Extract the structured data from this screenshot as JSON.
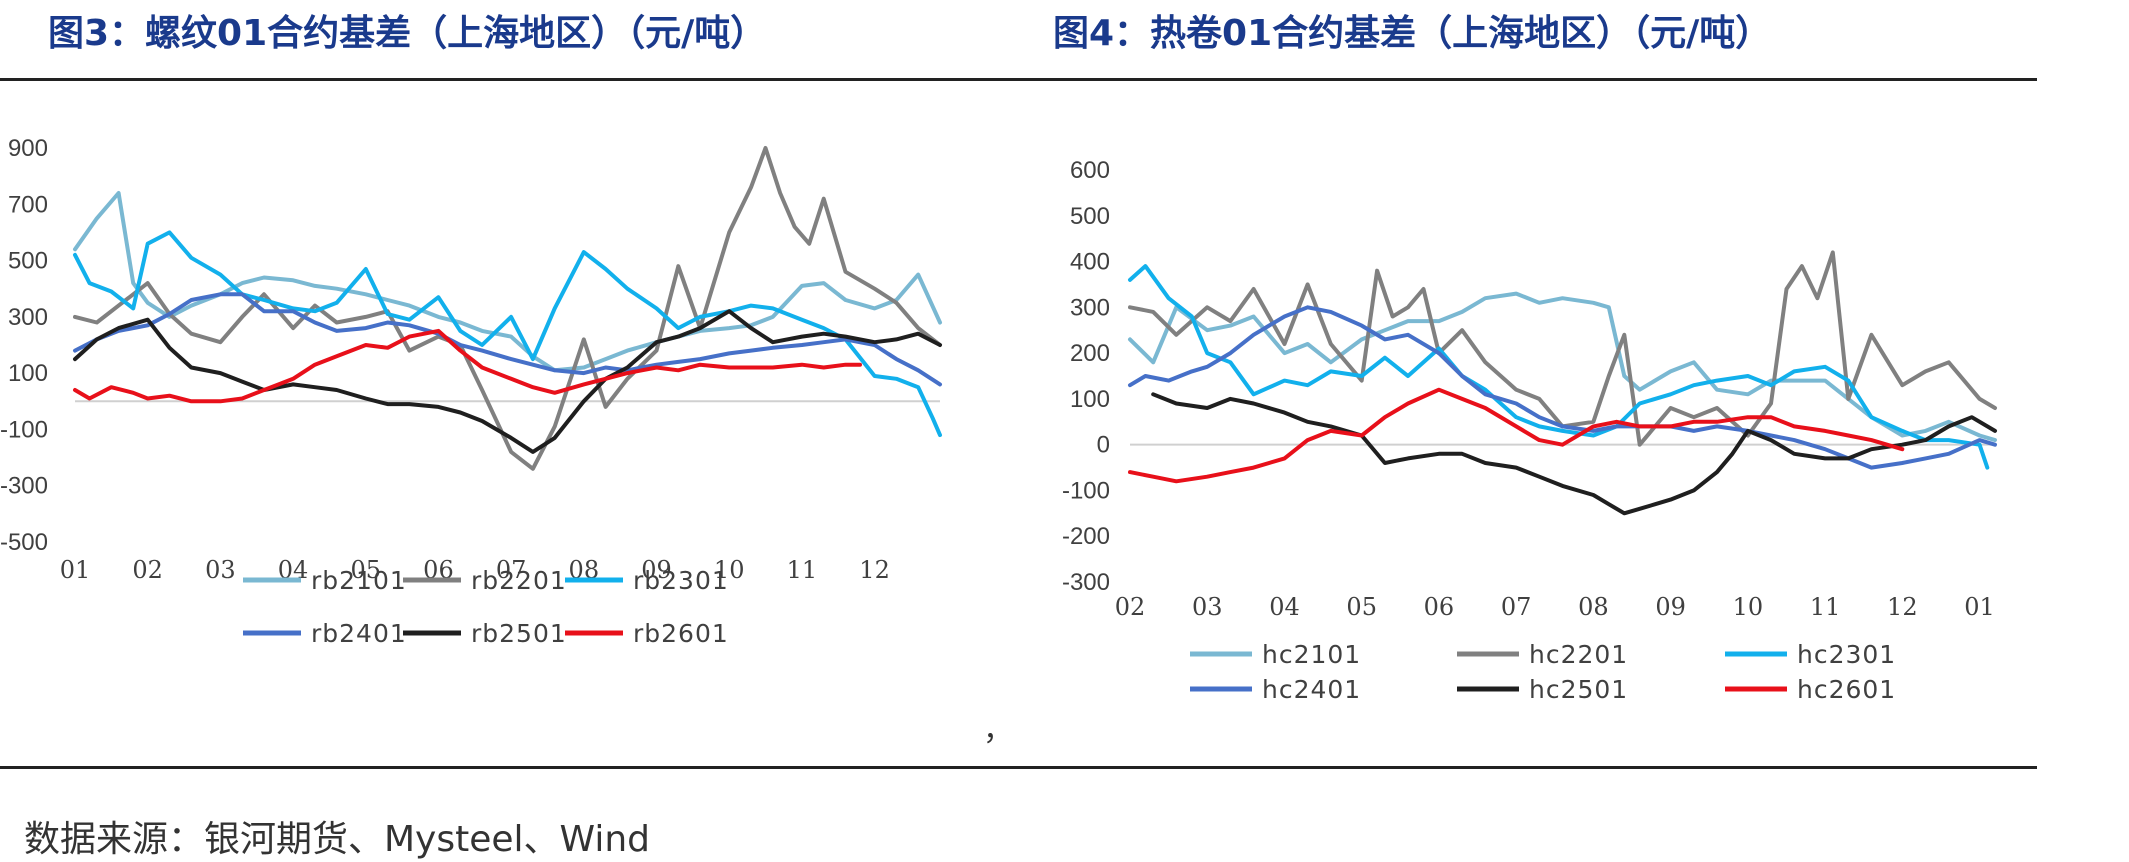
{
  "charts_header": {
    "left_title": "图3：螺纹01合约基差（上海地区）（元/吨）",
    "right_title": "图4：热卷01合约基差（上海地区）（元/吨）"
  },
  "stray_mark": "，",
  "source": "数据来源：银河期货、Mysteel、Wind",
  "chart_data": [
    {
      "type": "line",
      "title": "图3：螺纹01合约基差（上海地区）（元/吨）",
      "x_ticks": [
        "01",
        "02",
        "03",
        "04",
        "05",
        "06",
        "07",
        "08",
        "09",
        "10",
        "11",
        "12"
      ],
      "y_ticks": [
        "900",
        "700",
        "500",
        "300",
        "100",
        "-100",
        "-300",
        "-500"
      ],
      "ylim": [
        -500,
        900
      ],
      "xlim": [
        1,
        12.9
      ],
      "grid": false,
      "zero_line": true,
      "legend_position": "bottom",
      "series": [
        {
          "name": "rb2101",
          "color": "#7ab8d2",
          "x": [
            1,
            1.3,
            1.6,
            1.8,
            2,
            2.3,
            2.6,
            3,
            3.3,
            3.6,
            4,
            4.3,
            4.6,
            5,
            5.3,
            5.6,
            6,
            6.3,
            6.6,
            7,
            7.3,
            7.6,
            8,
            8.3,
            8.6,
            9,
            9.3,
            9.6,
            10,
            10.3,
            10.6,
            11,
            11.3,
            11.6,
            12,
            12.3,
            12.6,
            12.9
          ],
          "y": [
            540,
            650,
            740,
            420,
            350,
            300,
            340,
            380,
            420,
            440,
            430,
            410,
            400,
            380,
            360,
            340,
            300,
            280,
            250,
            230,
            160,
            110,
            120,
            150,
            180,
            210,
            230,
            250,
            260,
            270,
            300,
            410,
            420,
            360,
            330,
            360,
            450,
            280
          ]
        },
        {
          "name": "rb2201",
          "color": "#808080",
          "x": [
            1,
            1.3,
            1.6,
            2,
            2.3,
            2.6,
            3,
            3.3,
            3.6,
            4,
            4.3,
            4.6,
            5,
            5.3,
            5.6,
            6,
            6.3,
            6.6,
            7,
            7.3,
            7.6,
            8,
            8.3,
            8.6,
            9,
            9.3,
            9.6,
            10,
            10.3,
            10.5,
            10.7,
            10.9,
            11.1,
            11.3,
            11.6,
            12,
            12.3,
            12.6,
            12.9
          ],
          "y": [
            300,
            280,
            340,
            420,
            310,
            240,
            210,
            300,
            380,
            260,
            340,
            280,
            300,
            320,
            180,
            230,
            200,
            40,
            -180,
            -240,
            -90,
            220,
            -20,
            80,
            180,
            480,
            260,
            600,
            760,
            900,
            740,
            620,
            560,
            720,
            460,
            400,
            350,
            260,
            200
          ]
        },
        {
          "name": "rb2301",
          "color": "#12b0ec",
          "x": [
            1,
            1.2,
            1.5,
            1.8,
            2,
            2.3,
            2.6,
            3,
            3.3,
            3.6,
            4,
            4.3,
            4.6,
            5,
            5.3,
            5.6,
            6,
            6.3,
            6.6,
            7,
            7.3,
            7.6,
            8,
            8.3,
            8.6,
            9,
            9.3,
            9.6,
            10,
            10.3,
            10.6,
            11,
            11.3,
            11.6,
            12,
            12.3,
            12.6,
            12.8,
            12.9
          ],
          "y": [
            520,
            420,
            390,
            330,
            560,
            600,
            510,
            450,
            380,
            360,
            330,
            320,
            350,
            470,
            310,
            290,
            370,
            250,
            200,
            300,
            150,
            330,
            530,
            470,
            400,
            330,
            260,
            300,
            320,
            340,
            330,
            290,
            260,
            220,
            90,
            80,
            50,
            -60,
            -120
          ]
        },
        {
          "name": "rb2401",
          "color": "#4670c8",
          "x": [
            1,
            1.3,
            1.6,
            2,
            2.3,
            2.6,
            3,
            3.3,
            3.6,
            4,
            4.3,
            4.6,
            5,
            5.3,
            5.6,
            6,
            6.3,
            6.6,
            7,
            7.3,
            7.6,
            8,
            8.3,
            8.6,
            9,
            9.3,
            9.6,
            10,
            10.3,
            10.6,
            11,
            11.3,
            11.6,
            12,
            12.3,
            12.6,
            12.9
          ],
          "y": [
            180,
            220,
            250,
            270,
            310,
            360,
            380,
            380,
            320,
            320,
            280,
            250,
            260,
            280,
            270,
            240,
            200,
            180,
            150,
            130,
            110,
            100,
            120,
            110,
            130,
            140,
            150,
            170,
            180,
            190,
            200,
            210,
            220,
            200,
            150,
            110,
            60
          ]
        },
        {
          "name": "rb2501",
          "color": "#1f1f1f",
          "x": [
            1,
            1.3,
            1.6,
            2,
            2.3,
            2.6,
            3,
            3.3,
            3.6,
            4,
            4.3,
            4.6,
            5,
            5.3,
            5.6,
            6,
            6.3,
            6.6,
            7,
            7.3,
            7.6,
            8,
            8.3,
            8.6,
            9,
            9.3,
            9.6,
            10,
            10.3,
            10.6,
            11,
            11.3,
            11.6,
            12,
            12.3,
            12.6,
            12.9
          ],
          "y": [
            150,
            220,
            260,
            290,
            190,
            120,
            100,
            70,
            40,
            60,
            50,
            40,
            10,
            -10,
            -10,
            -20,
            -40,
            -70,
            -130,
            -180,
            -130,
            0,
            80,
            120,
            210,
            230,
            260,
            320,
            260,
            210,
            230,
            240,
            230,
            210,
            220,
            240,
            200
          ]
        },
        {
          "name": "rb2601",
          "color": "#e8101a",
          "x": [
            1,
            1.2,
            1.5,
            1.8,
            2,
            2.3,
            2.6,
            3,
            3.3,
            3.6,
            4,
            4.3,
            4.6,
            5,
            5.3,
            5.6,
            6,
            6.3,
            6.6,
            7,
            7.3,
            7.6,
            8,
            8.3,
            8.6,
            9,
            9.3,
            9.6,
            10,
            10.3,
            10.6,
            11,
            11.3,
            11.6,
            11.8
          ],
          "y": [
            40,
            10,
            50,
            30,
            10,
            20,
            0,
            0,
            10,
            40,
            80,
            130,
            160,
            200,
            190,
            230,
            250,
            180,
            120,
            80,
            50,
            30,
            60,
            80,
            100,
            120,
            110,
            130,
            120,
            120,
            120,
            130,
            120,
            130,
            130
          ]
        }
      ]
    },
    {
      "type": "line",
      "title": "图4：热卷01合约基差（上海地区）（元/吨）",
      "x_ticks": [
        "02",
        "03",
        "04",
        "05",
        "06",
        "07",
        "08",
        "09",
        "10",
        "11",
        "12",
        "01"
      ],
      "y_ticks": [
        "600",
        "500",
        "400",
        "300",
        "200",
        "100",
        "0",
        "-100",
        "-200",
        "-300"
      ],
      "ylim": [
        -300,
        600
      ],
      "xlim": [
        2,
        13.2
      ],
      "grid": false,
      "zero_line": true,
      "legend_position": "bottom",
      "series": [
        {
          "name": "hc2101",
          "color": "#7ab8d2",
          "x": [
            2,
            2.3,
            2.6,
            3,
            3.3,
            3.6,
            4,
            4.3,
            4.6,
            5,
            5.3,
            5.6,
            6,
            6.3,
            6.6,
            7,
            7.3,
            7.6,
            8,
            8.2,
            8.4,
            8.6,
            9,
            9.3,
            9.6,
            10,
            10.3,
            10.6,
            11,
            11.3,
            11.6,
            12,
            12.3,
            12.6,
            13,
            13.2
          ],
          "y": [
            230,
            180,
            300,
            250,
            260,
            280,
            200,
            220,
            180,
            230,
            250,
            270,
            270,
            290,
            320,
            330,
            310,
            320,
            310,
            300,
            150,
            120,
            160,
            180,
            120,
            110,
            140,
            140,
            140,
            100,
            60,
            20,
            30,
            50,
            20,
            10
          ]
        },
        {
          "name": "hc2201",
          "color": "#808080",
          "x": [
            2,
            2.3,
            2.6,
            3,
            3.3,
            3.6,
            4,
            4.3,
            4.6,
            5,
            5.2,
            5.4,
            5.6,
            5.8,
            6,
            6.3,
            6.6,
            7,
            7.3,
            7.6,
            8,
            8.2,
            8.4,
            8.6,
            9,
            9.3,
            9.6,
            10,
            10.3,
            10.5,
            10.7,
            10.9,
            11.1,
            11.3,
            11.6,
            12,
            12.3,
            12.6,
            13,
            13.2
          ],
          "y": [
            300,
            290,
            240,
            300,
            270,
            340,
            220,
            350,
            220,
            140,
            380,
            280,
            300,
            340,
            200,
            250,
            180,
            120,
            100,
            40,
            50,
            150,
            240,
            0,
            80,
            60,
            80,
            20,
            90,
            340,
            390,
            320,
            420,
            100,
            240,
            130,
            160,
            180,
            100,
            80
          ]
        },
        {
          "name": "hc2301",
          "color": "#12b0ec",
          "x": [
            2,
            2.2,
            2.5,
            2.8,
            3,
            3.3,
            3.6,
            4,
            4.3,
            4.6,
            5,
            5.3,
            5.6,
            6,
            6.3,
            6.6,
            7,
            7.3,
            7.6,
            8,
            8.3,
            8.6,
            9,
            9.3,
            9.6,
            10,
            10.3,
            10.6,
            11,
            11.3,
            11.6,
            12,
            12.3,
            12.6,
            13,
            13.1
          ],
          "y": [
            360,
            390,
            320,
            280,
            200,
            180,
            110,
            140,
            130,
            160,
            150,
            190,
            150,
            210,
            150,
            120,
            60,
            40,
            30,
            20,
            40,
            90,
            110,
            130,
            140,
            150,
            130,
            160,
            170,
            140,
            60,
            30,
            10,
            10,
            0,
            -50
          ]
        },
        {
          "name": "hc2401",
          "color": "#4670c8",
          "x": [
            2,
            2.2,
            2.5,
            2.8,
            3,
            3.3,
            3.6,
            4,
            4.3,
            4.6,
            5,
            5.3,
            5.6,
            6,
            6.3,
            6.6,
            7,
            7.3,
            7.6,
            8,
            8.3,
            8.6,
            9,
            9.3,
            9.6,
            10,
            10.3,
            10.6,
            11,
            11.3,
            11.6,
            12,
            12.3,
            12.6,
            13,
            13.2
          ],
          "y": [
            130,
            150,
            140,
            160,
            170,
            200,
            240,
            280,
            300,
            290,
            260,
            230,
            240,
            200,
            150,
            110,
            90,
            60,
            40,
            30,
            40,
            40,
            40,
            30,
            40,
            30,
            20,
            10,
            -10,
            -30,
            -50,
            -40,
            -30,
            -20,
            10,
            0
          ]
        },
        {
          "name": "hc2501",
          "color": "#1f1f1f",
          "x": [
            2.3,
            2.6,
            3,
            3.3,
            3.6,
            4,
            4.3,
            4.6,
            5,
            5.3,
            5.6,
            6,
            6.3,
            6.6,
            7,
            7.3,
            7.6,
            8,
            8.2,
            8.4,
            8.6,
            8.8,
            9,
            9.3,
            9.6,
            9.8,
            10,
            10.3,
            10.6,
            11,
            11.3,
            11.6,
            12,
            12.3,
            12.6,
            12.9,
            13.2
          ],
          "y": [
            110,
            90,
            80,
            100,
            90,
            70,
            50,
            40,
            20,
            -40,
            -30,
            -20,
            -20,
            -40,
            -50,
            -70,
            -90,
            -110,
            -130,
            -150,
            -140,
            -130,
            -120,
            -100,
            -60,
            -20,
            30,
            10,
            -20,
            -30,
            -30,
            -10,
            0,
            10,
            40,
            60,
            30
          ]
        },
        {
          "name": "hc2601",
          "color": "#e8101a",
          "x": [
            2,
            2.3,
            2.6,
            3,
            3.3,
            3.6,
            4,
            4.3,
            4.6,
            5,
            5.3,
            5.6,
            6,
            6.3,
            6.6,
            7,
            7.3,
            7.6,
            8,
            8.3,
            8.6,
            9,
            9.3,
            9.6,
            10,
            10.3,
            10.6,
            11,
            11.3,
            11.6,
            12
          ],
          "y": [
            -60,
            -70,
            -80,
            -70,
            -60,
            -50,
            -30,
            10,
            30,
            20,
            60,
            90,
            120,
            100,
            80,
            40,
            10,
            0,
            40,
            50,
            40,
            40,
            50,
            50,
            60,
            60,
            40,
            30,
            20,
            10,
            -10
          ]
        }
      ]
    }
  ]
}
